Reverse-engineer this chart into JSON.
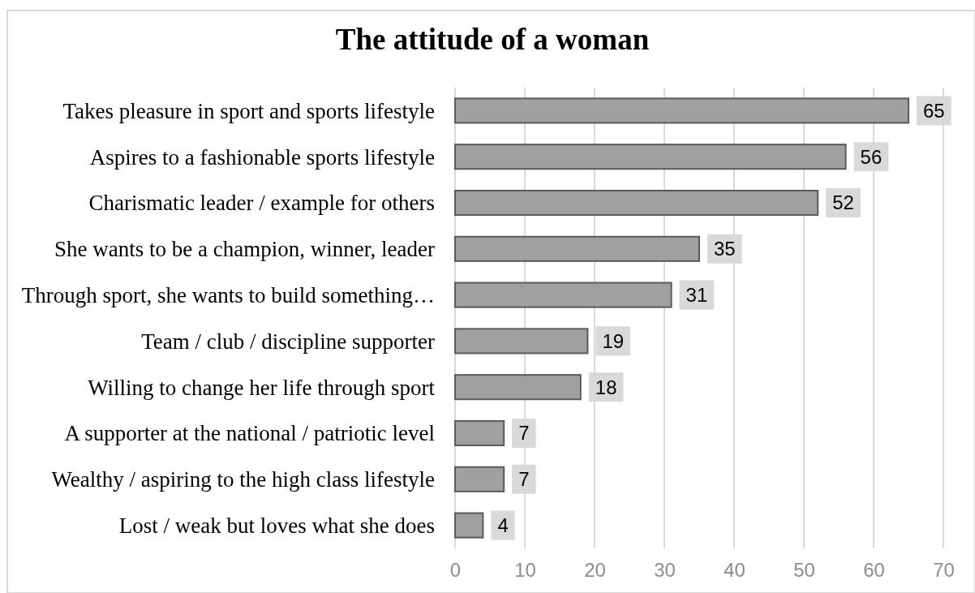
{
  "chart_data": {
    "type": "bar",
    "orientation": "horizontal",
    "title": "The attitude of a woman",
    "categories": [
      "Takes pleasure in sport and sports lifestyle",
      "Aspires to a fashionable sports lifestyle",
      "Charismatic leader / example for others",
      "She wants to be a champion, winner, leader",
      "Through sport, she wants to build something…",
      "Team / club / discipline supporter",
      "Willing to change her life through sport",
      "A supporter at the national / patriotic level",
      "Wealthy / aspiring to the high class lifestyle",
      "Lost / weak but loves what she does"
    ],
    "values": [
      65,
      56,
      52,
      35,
      31,
      19,
      18,
      7,
      7,
      4
    ],
    "color": "#a0a0a0",
    "xlim": [
      0,
      70
    ],
    "xticks": [
      0,
      10,
      20,
      30,
      40,
      50,
      60,
      70
    ],
    "grid": "x",
    "data_labels": true
  }
}
